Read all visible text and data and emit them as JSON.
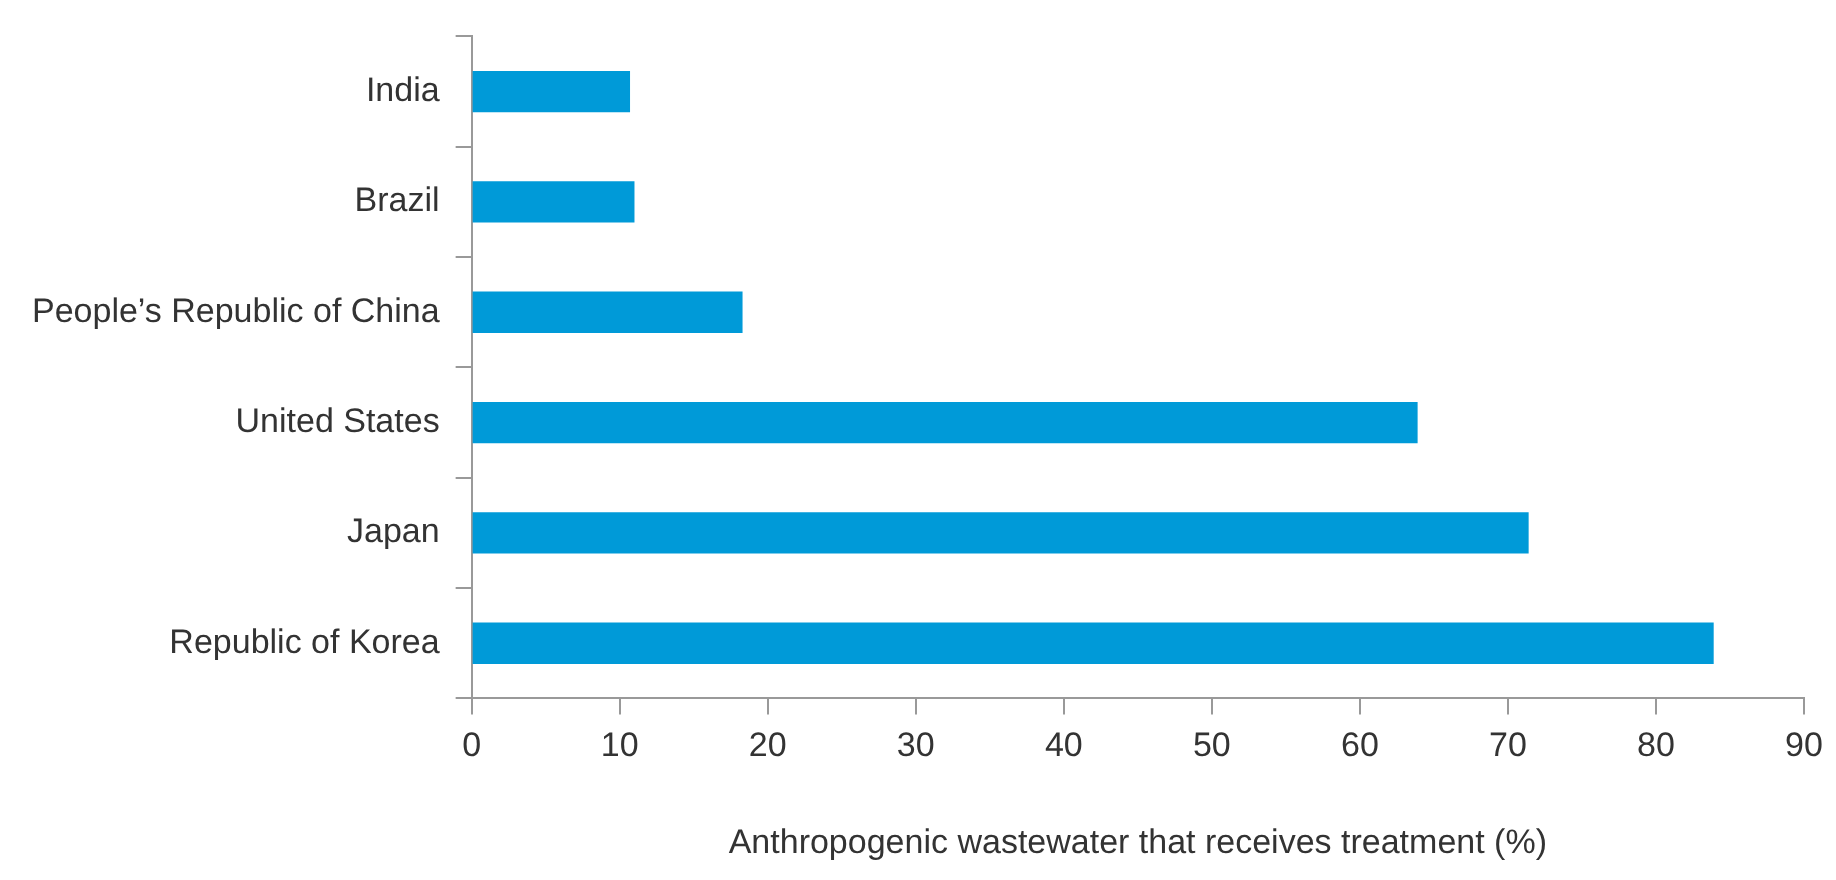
{
  "chart_data": {
    "type": "bar",
    "orientation": "horizontal",
    "xlabel": "Anthropogenic wastewater that receives treatment (%)",
    "categories": [
      "India",
      "Brazil",
      "People’s Republic of China",
      "United States",
      "Japan",
      "Republic of Korea"
    ],
    "values": [
      10.7,
      11.0,
      18.3,
      63.9,
      71.4,
      83.9
    ],
    "color": "#009ad8",
    "xlim": [
      0,
      90
    ],
    "xticks": [
      0,
      10,
      20,
      30,
      40,
      50,
      60,
      70,
      80,
      90
    ],
    "grid": false,
    "legend": false
  }
}
